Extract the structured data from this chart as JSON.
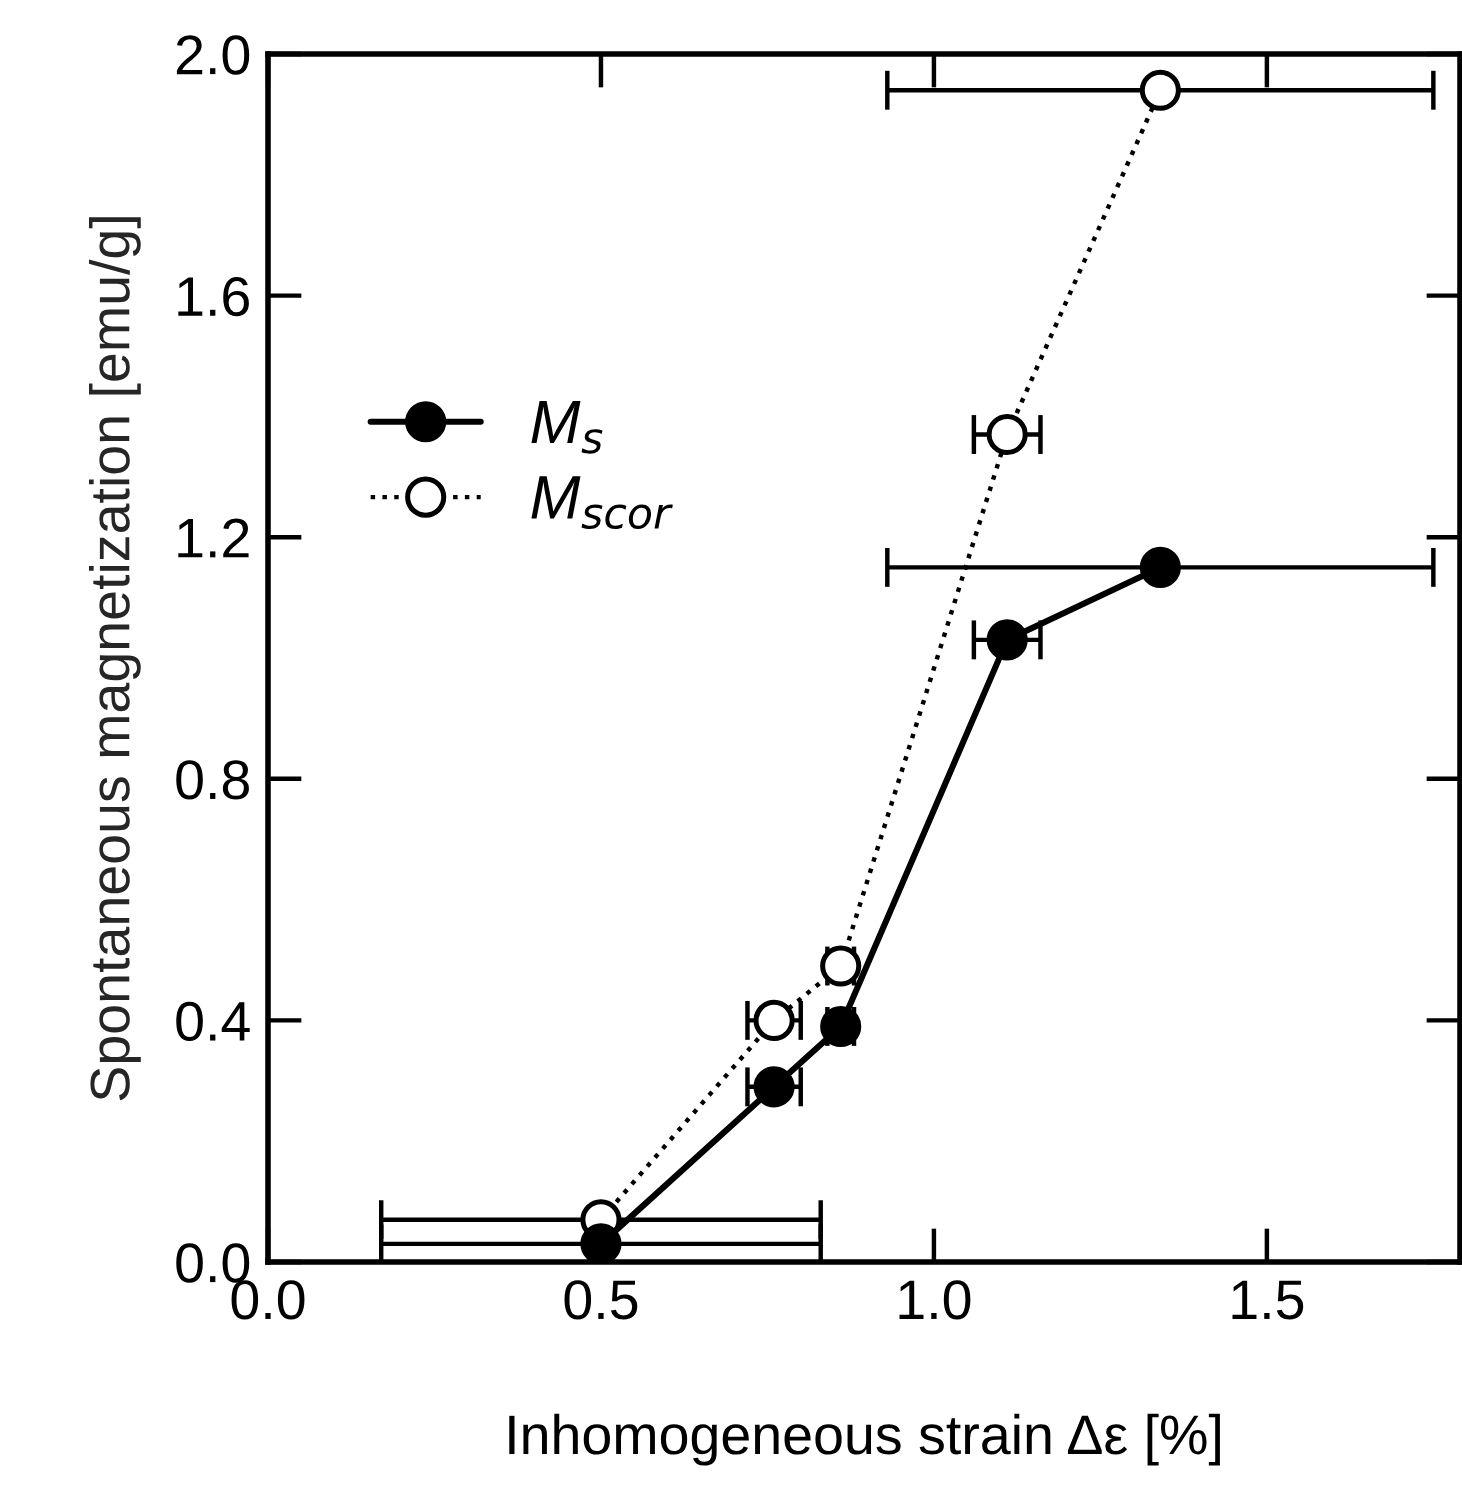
{
  "chart_data": {
    "type": "line",
    "xlabel": "Inhomogeneous strain Δε [%]",
    "ylabel": "Spontaneous magnetization [emu/g]",
    "xlim": [
      0,
      1.79
    ],
    "xticks": [
      {
        "value": 0,
        "label": "0.0"
      },
      {
        "value": 0.5,
        "label": "0.5"
      },
      {
        "value": 1.0,
        "label": "1.0"
      },
      {
        "value": 1.5,
        "label": "1.5"
      }
    ],
    "ylim": [
      0,
      2.0
    ],
    "yticks": [
      {
        "value": 0,
        "label": "0.0"
      },
      {
        "value": 0.4,
        "label": "0.4"
      },
      {
        "value": 0.8,
        "label": "0.8"
      },
      {
        "value": 1.2,
        "label": "1.2"
      },
      {
        "value": 1.6,
        "label": "1.6"
      },
      {
        "value": 2.0,
        "label": "2.0"
      }
    ],
    "grid": false,
    "legend": "top left",
    "marker": "circle",
    "series": [
      {
        "name": "M$_{s}$",
        "color": "#000000",
        "line_style": "solid",
        "x": [
          0.5,
          0.76,
          0.86,
          1.11,
          1.34
        ],
        "values": [
          0.03,
          0.29,
          0.39,
          1.03,
          1.15
        ],
        "xerrors": [
          0.33,
          0.04,
          0.02,
          0.05,
          0.41
        ]
      },
      {
        "name": "M$_{scor}$",
        "color": "#000000",
        "line_style": "dotted",
        "x": [
          0.5,
          0.76,
          0.86,
          1.11,
          1.34
        ],
        "values": [
          0.07,
          0.4,
          0.49,
          1.37,
          1.94
        ],
        "xerrors": [
          0.33,
          0.04,
          0.02,
          0.05,
          0.41
        ]
      }
    ]
  }
}
